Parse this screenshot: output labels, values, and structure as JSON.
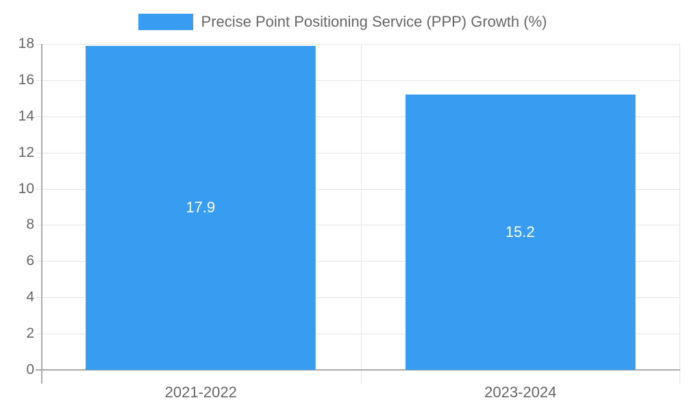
{
  "chart_data": {
    "type": "bar",
    "title": "",
    "categories": [
      "2021-2022",
      "2023-2024"
    ],
    "series": [
      {
        "name": "Precise Point Positioning Service (PPP) Growth (%)",
        "values": [
          17.9,
          15.2
        ],
        "color": "#389cf0"
      }
    ],
    "values": [
      17.9,
      15.2
    ],
    "data_labels": [
      "17.9",
      "15.2"
    ],
    "xlabel": "",
    "ylabel": "",
    "ylim": [
      0,
      18
    ],
    "yticks": [
      "0",
      "2",
      "4",
      "6",
      "8",
      "10",
      "12",
      "14",
      "16",
      "18"
    ],
    "grid": true,
    "legend_position": "top"
  },
  "legend": {
    "label": "Precise Point Positioning Service (PPP) Growth (%)",
    "color": "#389cf0"
  }
}
